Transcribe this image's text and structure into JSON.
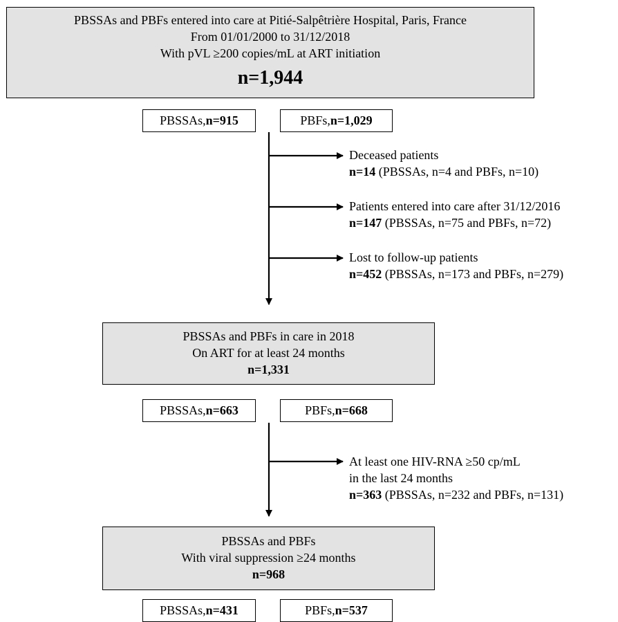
{
  "box_total": {
    "lines": [
      "PBSSAs and PBFs entered into care at Pitié-Salpêtrière Hospital, Paris, France",
      "From 01/01/2000 to 31/12/2018",
      "With pVL ≥200 copies/mL at ART initiation"
    ],
    "n": "n=1,944"
  },
  "split_1": {
    "pbssas_label": "PBSSAs, ",
    "pbssas_n": "n=915",
    "pbfs_label": "PBFs, ",
    "pbfs_n": "n=1,029"
  },
  "exclusions_1": [
    {
      "title": "Deceased patients",
      "n": "n=14",
      "detail": " (PBSSAs, n=4 and PBFs, n=10)"
    },
    {
      "title": "Patients entered into care after 31/12/2016",
      "n": "n=147",
      "detail": " (PBSSAs, n=75 and PBFs, n=72)"
    },
    {
      "title": "Lost to follow-up patients",
      "n": "n=452",
      "detail": " (PBSSAs, n=173 and PBFs, n=279)"
    }
  ],
  "box_in_care": {
    "lines": [
      "PBSSAs and PBFs in care in 2018",
      "On ART for at least 24 months"
    ],
    "n": "n=1,331"
  },
  "split_2": {
    "pbssas_label": "PBSSAs, ",
    "pbssas_n": "n=663",
    "pbfs_label": "PBFs, ",
    "pbfs_n": "n=668"
  },
  "exclusion_2": {
    "title_1": "At least one HIV-RNA ≥50 cp/mL",
    "title_2": "in the last 24 months",
    "n": "n=363",
    "detail": " (PBSSAs, n=232 and PBFs, n=131)"
  },
  "box_suppressed": {
    "lines": [
      "PBSSAs and PBFs",
      "With viral suppression ≥24 months"
    ],
    "n": "n=968"
  },
  "split_3": {
    "pbssas_label": "PBSSAs, ",
    "pbssas_n": "n=431",
    "pbfs_label": "PBFs, ",
    "pbfs_n": "n=537"
  }
}
